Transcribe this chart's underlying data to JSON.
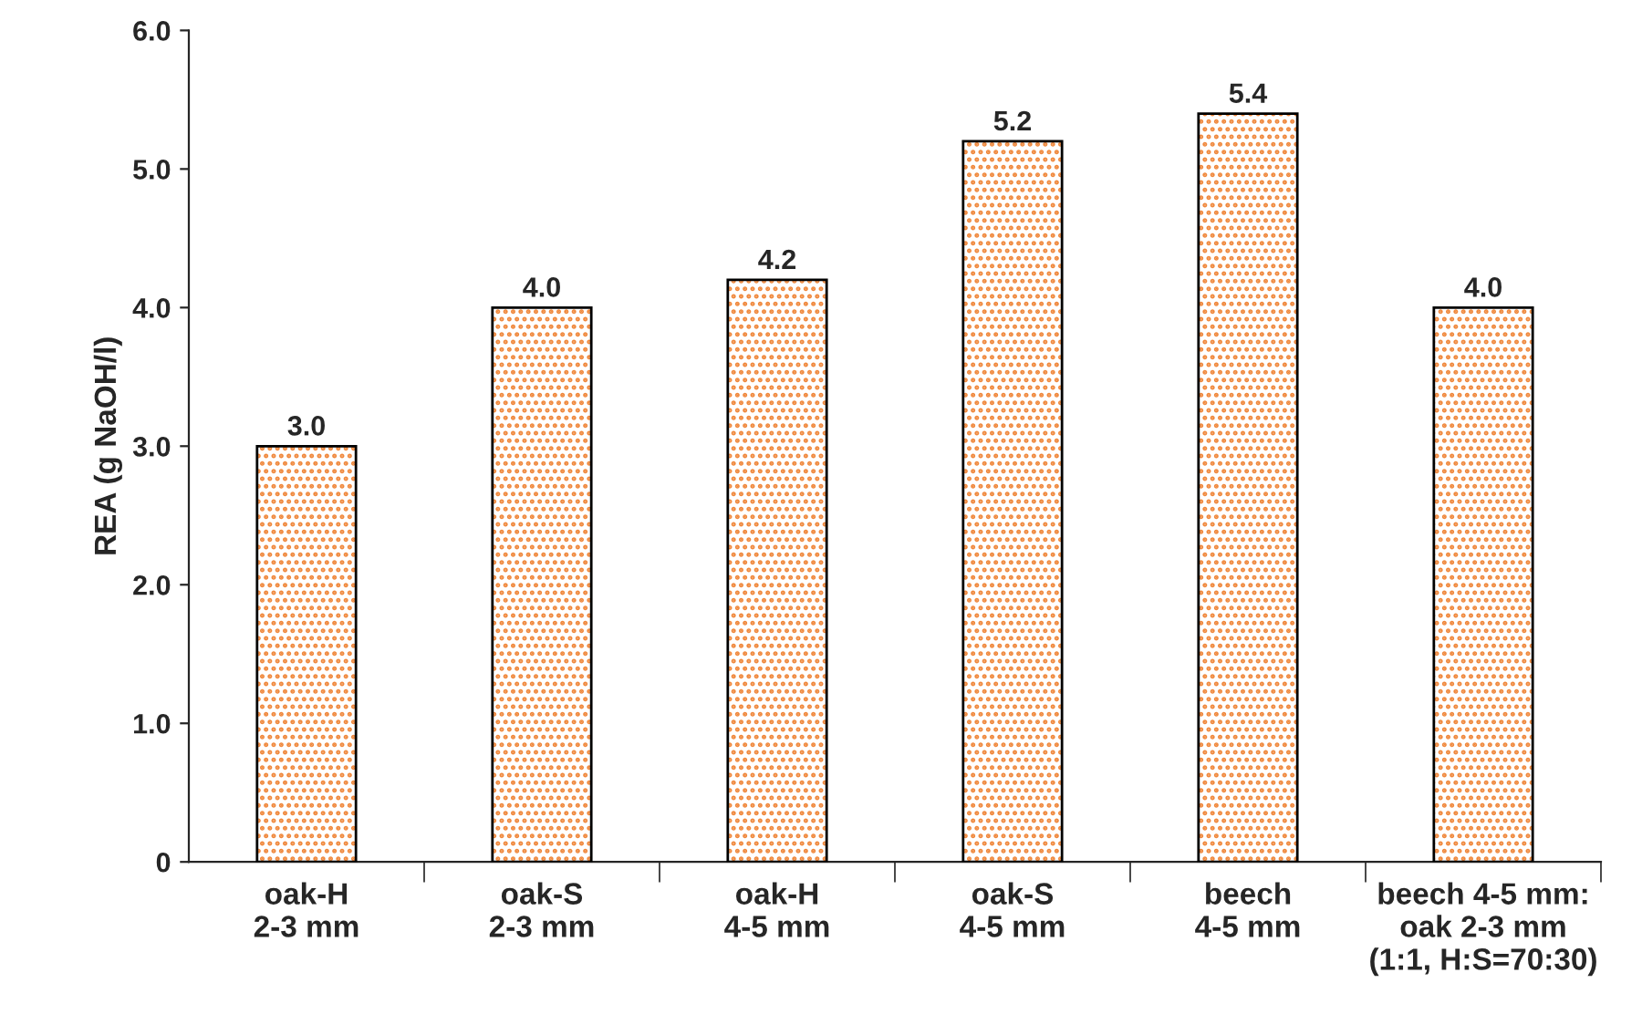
{
  "chart_data": {
    "type": "bar",
    "ylabel": "REA (g NaOH/l)",
    "categories": [
      "oak-H\n2-3 mm",
      "oak-S\n2-3 mm",
      "oak-H\n4-5 mm",
      "oak-S\n4-5 mm",
      "beech\n4-5 mm",
      "beech 4-5 mm:\noak 2-3 mm\n(1:1, H:S=70:30)"
    ],
    "values": [
      3.0,
      4.0,
      4.2,
      5.2,
      5.4,
      4.0
    ],
    "color": "#f0883c",
    "ylim": [
      0,
      6
    ],
    "yticks": [
      {
        "value": 0,
        "label": "0"
      },
      {
        "value": 1,
        "label": "1.0"
      },
      {
        "value": 2,
        "label": "2.0"
      },
      {
        "value": 3,
        "label": "3.0"
      },
      {
        "value": 4,
        "label": "4.0"
      },
      {
        "value": 5,
        "label": "5.0"
      },
      {
        "value": 6,
        "label": "6.0"
      }
    ],
    "value_labels": [
      "3.0",
      "4.0",
      "4.2",
      "5.2",
      "5.4",
      "4.0"
    ],
    "grid": false
  }
}
